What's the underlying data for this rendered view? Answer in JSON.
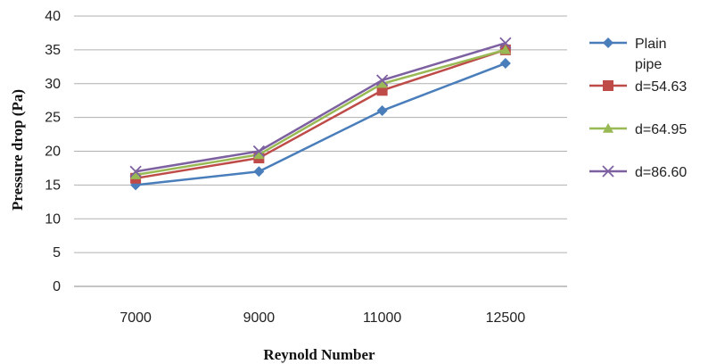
{
  "chart_data": {
    "type": "line",
    "title": "",
    "xlabel": "Reynold Number",
    "ylabel": "Pressure drop (Pa)",
    "categories": [
      "7000",
      "9000",
      "11000",
      "12500"
    ],
    "ylim": [
      0,
      40
    ],
    "yticks": [
      0,
      5,
      10,
      15,
      20,
      25,
      30,
      35,
      40
    ],
    "grid": "horizontal",
    "legend": "right",
    "series": [
      {
        "name": "Plain pipe",
        "label_lines": [
          "Plain",
          "pipe"
        ],
        "color": "#4a7ebb",
        "marker": "diamond",
        "values": [
          15,
          17,
          26,
          33
        ]
      },
      {
        "name": "d=54.63",
        "label_lines": [
          "d=54.63"
        ],
        "color": "#be4b48",
        "marker": "square",
        "values": [
          16,
          19,
          29,
          35
        ]
      },
      {
        "name": "d=64.95",
        "label_lines": [
          "d=64.95"
        ],
        "color": "#98b954",
        "marker": "triangle",
        "values": [
          16.5,
          19.5,
          30,
          35
        ]
      },
      {
        "name": "d=86.60",
        "label_lines": [
          "d=86.60"
        ],
        "color": "#7d60a0",
        "marker": "x",
        "values": [
          17,
          20,
          30.5,
          36
        ]
      }
    ]
  }
}
